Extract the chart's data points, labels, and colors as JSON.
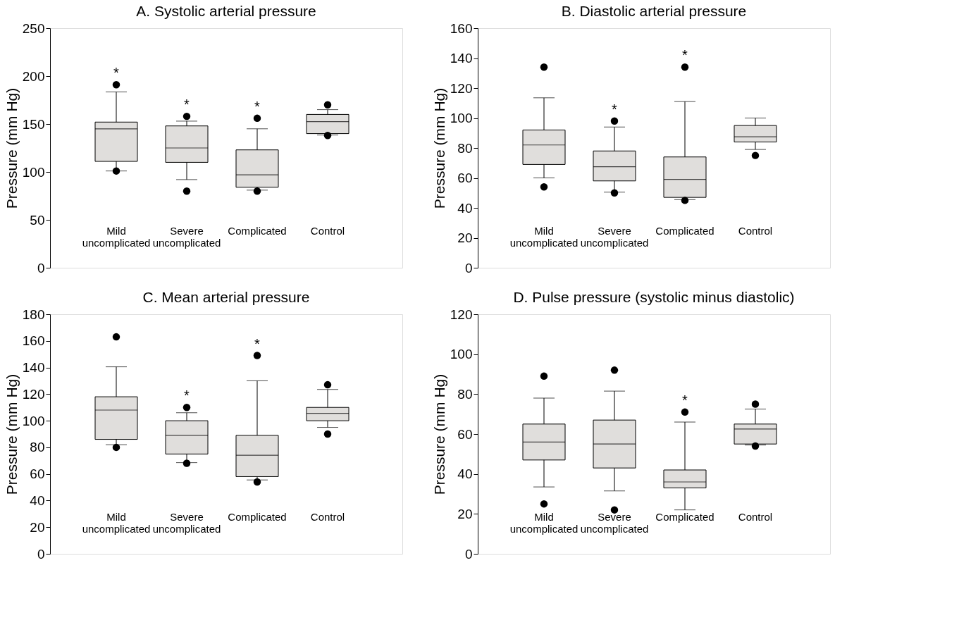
{
  "chart_data": [
    {
      "type": "box",
      "title": "A. Systolic arterial pressure",
      "ylabel": "Pressure (mm Hg)",
      "categories": [
        "Mild uncomplicated",
        "Severe uncomplicated",
        "Complicated",
        "Control"
      ],
      "ylim": [
        0,
        250
      ],
      "yticks": [
        0,
        50,
        100,
        150,
        200,
        250
      ],
      "grid": false,
      "series": [
        {
          "color": "#e0dedc",
          "boxes": [
            {
              "low": 101,
              "q1": 111,
              "median": 145,
              "q3": 152,
              "high": 183.5,
              "outliers": [
                191,
                101
              ]
            },
            {
              "low": 92,
              "q1": 110,
              "median": 125,
              "q3": 148,
              "high": 153,
              "outliers": [
                158,
                80
              ]
            },
            {
              "low": 81,
              "q1": 84,
              "median": 97,
              "q3": 123,
              "high": 145,
              "outliers": [
                156,
                80
              ]
            },
            {
              "low": 138.5,
              "q1": 140,
              "median": 152.5,
              "q3": 160,
              "high": 165,
              "outliers": [
                170,
                138
              ]
            }
          ]
        }
      ],
      "annotations": [
        "*",
        "*",
        "*"
      ]
    },
    {
      "type": "box",
      "title": "B. Diastolic arterial pressure",
      "ylabel": "Pressure (mm Hg)",
      "categories": [
        "Mild uncomplicated",
        "Severe uncomplicated",
        "Complicated",
        "Control"
      ],
      "ylim": [
        0,
        160
      ],
      "yticks": [
        0,
        20,
        40,
        60,
        80,
        100,
        120,
        140,
        160
      ],
      "grid": false,
      "series": [
        {
          "color": "#e0dedc",
          "boxes": [
            {
              "low": 60,
              "q1": 69,
              "median": 82,
              "q3": 92,
              "high": 113.5,
              "outliers": [
                134,
                54
              ]
            },
            {
              "low": 50.5,
              "q1": 58,
              "median": 67.5,
              "q3": 78,
              "high": 94,
              "outliers": [
                98,
                50
              ]
            },
            {
              "low": 45.5,
              "q1": 47,
              "median": 59,
              "q3": 74,
              "high": 111,
              "outliers": [
                134,
                45
              ]
            },
            {
              "low": 79,
              "q1": 84,
              "median": 87.5,
              "q3": 95,
              "high": 100,
              "outliers": [
                75
              ]
            }
          ]
        }
      ],
      "annotations": [
        "*",
        "*"
      ]
    },
    {
      "type": "box",
      "title": "C. Mean arterial pressure",
      "ylabel": "Pressure (mm Hg)",
      "categories": [
        "Mild uncomplicated",
        "Severe uncomplicated",
        "Complicated",
        "Control"
      ],
      "ylim": [
        0,
        180
      ],
      "yticks": [
        0,
        20,
        40,
        60,
        80,
        100,
        120,
        140,
        160,
        180
      ],
      "grid": false,
      "series": [
        {
          "color": "#e0dedc",
          "boxes": [
            {
              "low": 82,
              "q1": 86,
              "median": 108,
              "q3": 118,
              "high": 140.5,
              "outliers": [
                163,
                80
              ]
            },
            {
              "low": 68.5,
              "q1": 75,
              "median": 89,
              "q3": 100,
              "high": 106,
              "outliers": [
                110,
                68
              ]
            },
            {
              "low": 55.5,
              "q1": 58,
              "median": 74,
              "q3": 89,
              "high": 130,
              "outliers": [
                149,
                54
              ]
            },
            {
              "low": 95,
              "q1": 100,
              "median": 105.5,
              "q3": 110,
              "high": 123.5,
              "outliers": [
                127,
                90
              ]
            }
          ]
        }
      ],
      "annotations": [
        "*",
        "*"
      ]
    },
    {
      "type": "box",
      "title": "D. Pulse pressure (systolic minus diastolic)",
      "ylabel": "Pressure (mm Hg)",
      "categories": [
        "Mild uncomplicated",
        "Severe uncomplicated",
        "Complicated",
        "Control"
      ],
      "ylim": [
        0,
        120
      ],
      "yticks": [
        0,
        20,
        40,
        60,
        80,
        100,
        120
      ],
      "grid": false,
      "series": [
        {
          "color": "#e0dedc",
          "boxes": [
            {
              "low": 33.5,
              "q1": 47,
              "median": 56,
              "q3": 65,
              "high": 78,
              "outliers": [
                89,
                25
              ]
            },
            {
              "low": 31.5,
              "q1": 43,
              "median": 55,
              "q3": 67,
              "high": 81.5,
              "outliers": [
                92,
                22
              ]
            },
            {
              "low": 22,
              "q1": 33,
              "median": 36,
              "q3": 42,
              "high": 66,
              "outliers": [
                71
              ]
            },
            {
              "low": 54.5,
              "q1": 55,
              "median": 62.5,
              "q3": 65,
              "high": 72.5,
              "outliers": [
                75,
                54
              ]
            }
          ]
        }
      ],
      "annotations": [
        "*"
      ]
    }
  ]
}
